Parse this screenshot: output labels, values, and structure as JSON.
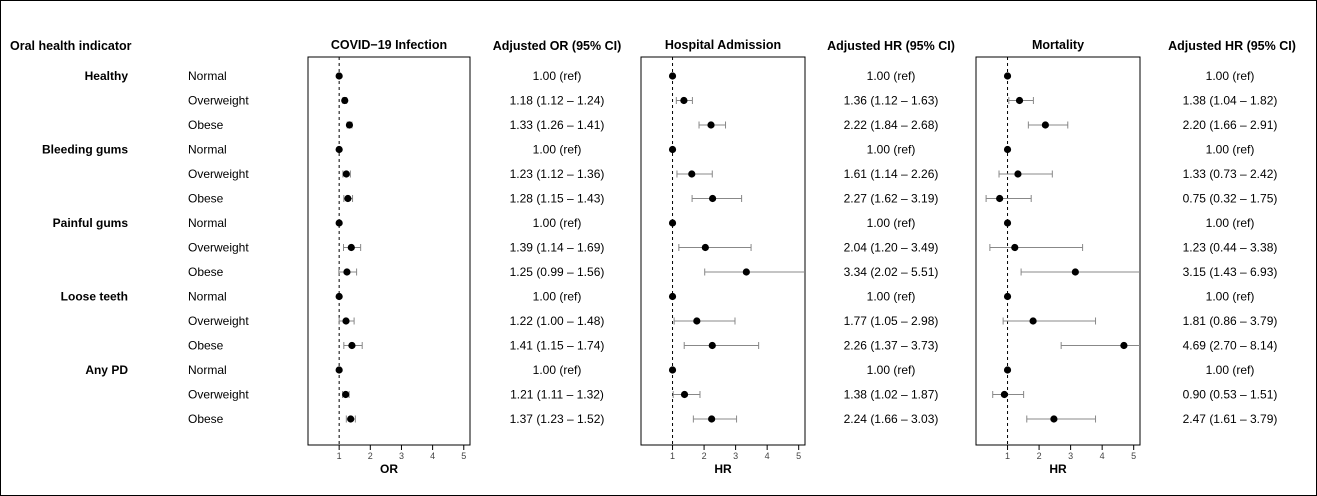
{
  "row_header": "Oral health indicator",
  "groups": [
    {
      "label": "Healthy",
      "rows": [
        "Normal",
        "Overweight",
        "Obese"
      ]
    },
    {
      "label": "Bleeding gums",
      "rows": [
        "Normal",
        "Overweight",
        "Obese"
      ]
    },
    {
      "label": "Painful gums",
      "rows": [
        "Normal",
        "Overweight",
        "Obese"
      ]
    },
    {
      "label": "Loose teeth",
      "rows": [
        "Normal",
        "Overweight",
        "Obese"
      ]
    },
    {
      "label": "Any PD",
      "rows": [
        "Normal",
        "Overweight",
        "Obese"
      ]
    }
  ],
  "chart_data": [
    {
      "type": "scatter",
      "title": "COVID−19 Infection",
      "xlabel": "OR",
      "table_header": "Adjusted OR (95% CI)",
      "xlim": [
        0,
        5.2
      ],
      "xticks": [
        1,
        2,
        3,
        4,
        5
      ],
      "reference_line": 1,
      "estimates": [
        1.0,
        1.18,
        1.33,
        1.0,
        1.23,
        1.28,
        1.0,
        1.39,
        1.25,
        1.0,
        1.22,
        1.41,
        1.0,
        1.21,
        1.37
      ],
      "lower": [
        1.0,
        1.12,
        1.26,
        1.0,
        1.12,
        1.15,
        1.0,
        1.14,
        0.99,
        1.0,
        1.0,
        1.15,
        1.0,
        1.11,
        1.23
      ],
      "upper": [
        1.0,
        1.24,
        1.41,
        1.0,
        1.36,
        1.43,
        1.0,
        1.69,
        1.56,
        1.0,
        1.48,
        1.74,
        1.0,
        1.32,
        1.52
      ],
      "labels": [
        "1.00 (ref)",
        "1.18 (1.12 – 1.24)",
        "1.33 (1.26 – 1.41)",
        "1.00 (ref)",
        "1.23 (1.12 – 1.36)",
        "1.28 (1.15 – 1.43)",
        "1.00 (ref)",
        "1.39 (1.14 – 1.69)",
        "1.25 (0.99 – 1.56)",
        "1.00 (ref)",
        "1.22 (1.00 – 1.48)",
        "1.41 (1.15 – 1.74)",
        "1.00 (ref)",
        "1.21 (1.11 – 1.32)",
        "1.37 (1.23 – 1.52)"
      ]
    },
    {
      "type": "scatter",
      "title": "Hospital Admission",
      "xlabel": "HR",
      "table_header": "Adjusted HR (95% CI)",
      "xlim": [
        0,
        5.2
      ],
      "xticks": [
        1,
        2,
        3,
        4,
        5
      ],
      "reference_line": 1,
      "estimates": [
        1.0,
        1.36,
        2.22,
        1.0,
        1.61,
        2.27,
        1.0,
        2.04,
        3.34,
        1.0,
        1.77,
        2.26,
        1.0,
        1.38,
        2.24
      ],
      "lower": [
        1.0,
        1.12,
        1.84,
        1.0,
        1.14,
        1.62,
        1.0,
        1.2,
        2.02,
        1.0,
        1.05,
        1.37,
        1.0,
        1.02,
        1.66
      ],
      "upper": [
        1.0,
        1.63,
        2.68,
        1.0,
        2.26,
        3.19,
        1.0,
        3.49,
        5.51,
        1.0,
        2.98,
        3.73,
        1.0,
        1.87,
        3.03
      ],
      "labels": [
        "1.00 (ref)",
        "1.36 (1.12 – 1.63)",
        "2.22 (1.84 – 2.68)",
        "1.00 (ref)",
        "1.61 (1.14 – 2.26)",
        "2.27 (1.62 – 3.19)",
        "1.00 (ref)",
        "2.04 (1.20 – 3.49)",
        "3.34 (2.02 – 5.51)",
        "1.00 (ref)",
        "1.77 (1.05 – 2.98)",
        "2.26 (1.37 – 3.73)",
        "1.00 (ref)",
        "1.38 (1.02 – 1.87)",
        "2.24 (1.66 – 3.03)"
      ]
    },
    {
      "type": "scatter",
      "title": "Mortality",
      "xlabel": "HR",
      "table_header": "Adjusted HR (95% CI)",
      "xlim": [
        0,
        5.2
      ],
      "xticks": [
        1,
        2,
        3,
        4,
        5
      ],
      "reference_line": 1,
      "estimates": [
        1.0,
        1.38,
        2.2,
        1.0,
        1.33,
        0.75,
        1.0,
        1.23,
        3.15,
        1.0,
        1.81,
        4.69,
        1.0,
        0.9,
        2.47
      ],
      "lower": [
        1.0,
        1.04,
        1.66,
        1.0,
        0.73,
        0.32,
        1.0,
        0.44,
        1.43,
        1.0,
        0.86,
        2.7,
        1.0,
        0.53,
        1.61
      ],
      "upper": [
        1.0,
        1.82,
        2.91,
        1.0,
        2.42,
        1.75,
        1.0,
        3.38,
        6.93,
        1.0,
        3.79,
        8.14,
        1.0,
        1.51,
        3.79
      ],
      "labels": [
        "1.00 (ref)",
        "1.38 (1.04 – 1.82)",
        "2.20 (1.66 – 2.91)",
        "1.00 (ref)",
        "1.33 (0.73 – 2.42)",
        "0.75 (0.32 – 1.75)",
        "1.00 (ref)",
        "1.23 (0.44 – 3.38)",
        "3.15 (1.43 – 6.93)",
        "1.00 (ref)",
        "1.81 (0.86 – 3.79)",
        "4.69 (2.70 – 8.14)",
        "1.00 (ref)",
        "0.90 (0.53 – 1.51)",
        "2.47 (1.61 – 3.79)"
      ]
    }
  ]
}
